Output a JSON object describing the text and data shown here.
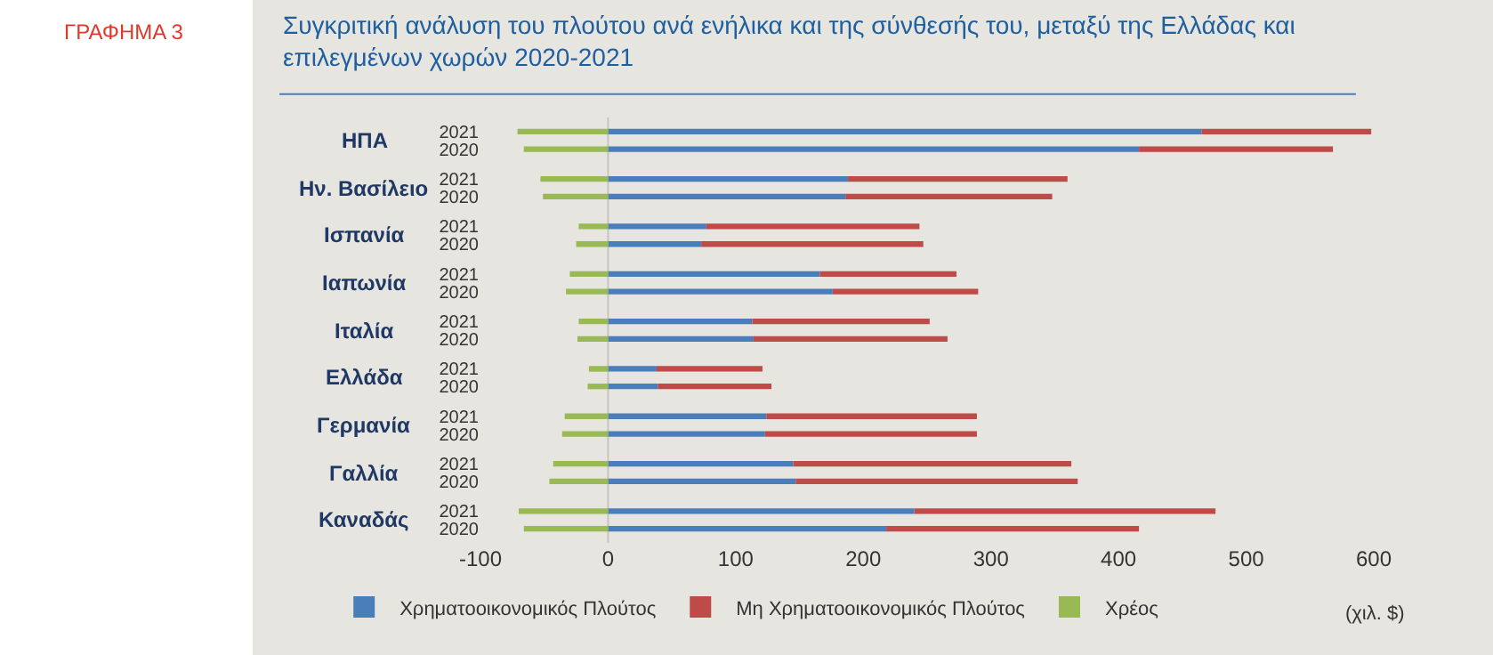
{
  "chart_data": {
    "type": "bar",
    "orientation": "horizontal",
    "stacked": true,
    "title": "Συγκριτική ανάλυση του πλούτου ανά ενήλικα και της σύνθεσής του, μεταξύ της Ελλάδας και επιλεγμένων χωρών 2020-2021",
    "xlabel": "(χιλ. $)",
    "categories": [
      "2021",
      "2020",
      "2021",
      "2020",
      "2021",
      "2020",
      "2021",
      "2020",
      "2021",
      "2020",
      "2021",
      "2020",
      "2021",
      "2020",
      "2021",
      "2020",
      "2021",
      "2020"
    ],
    "series": [
      {
        "name": "Χρηματοοικονομικός Πλούτος",
        "color": "#4a7ebb",
        "values": [
          465,
          416,
          188,
          186,
          77,
          73,
          166,
          176,
          113,
          114,
          38,
          39,
          124,
          123,
          145,
          147,
          240,
          218
        ]
      },
      {
        "name": "Μη Χρηματοοικονομικός Πλούτος",
        "color": "#be4b48",
        "values": [
          133,
          152,
          172,
          162,
          167,
          174,
          107,
          114,
          139,
          152,
          83,
          89,
          165,
          166,
          218,
          221,
          236,
          198
        ]
      },
      {
        "name": "Χρέος",
        "color": "#98b954",
        "values": [
          -71,
          -66,
          -53,
          -51,
          -23,
          -25,
          -30,
          -33,
          -23,
          -24,
          -15,
          -16,
          -34,
          -36,
          -43,
          -46,
          -70,
          -66
        ]
      }
    ],
    "annotations": [
      "ΗΠΑ",
      "Ην. Βασίλειο",
      "Ισπανία",
      "Ιαπωνία",
      "Ιταλία",
      "Ελλάδα",
      "Γερμανία",
      "Γαλλία",
      "Καναδάς",
      "ΓΡΑΦΗΜΑ 3"
    ],
    "xlim": [
      -100,
      600
    ],
    "xticks": [
      -100,
      0,
      100,
      200,
      300,
      400,
      500,
      600
    ],
    "ref_lines": [
      {
        "axis": "x",
        "value": 0,
        "color": "#c4c4c0"
      }
    ],
    "grid": false,
    "legend": "bottom"
  }
}
